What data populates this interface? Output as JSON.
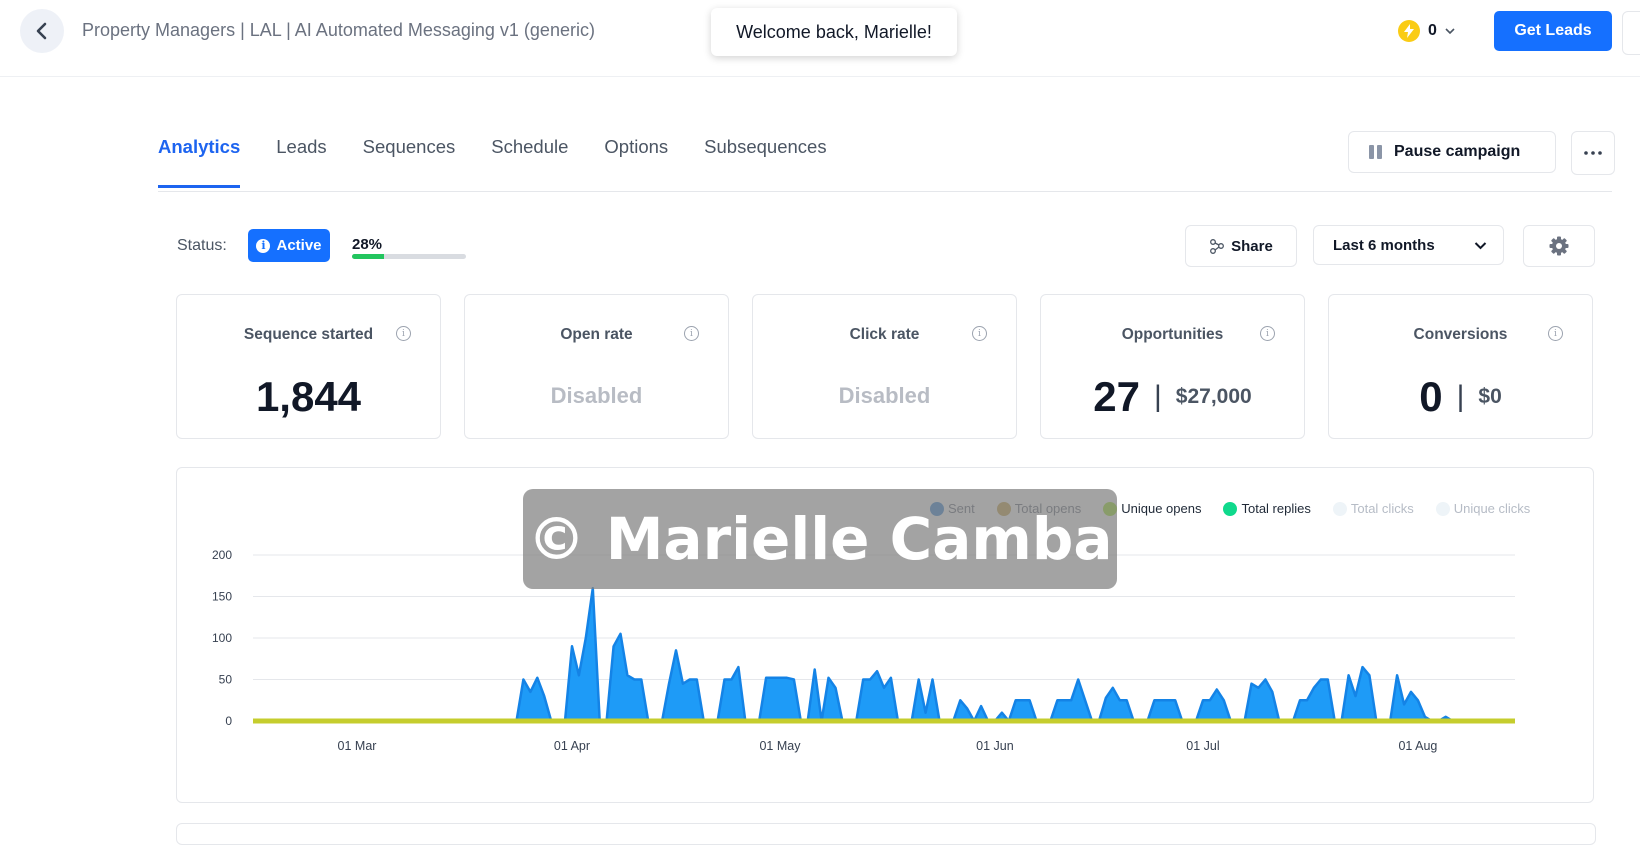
{
  "header": {
    "campaign_title": "Property Managers | LAL | AI Automated Messaging v1 (generic)",
    "toast": "Welcome back, Marielle!",
    "credits": "0",
    "get_leads_label": "Get Leads"
  },
  "tabs": [
    "Analytics",
    "Leads",
    "Sequences",
    "Schedule",
    "Options",
    "Subsequences"
  ],
  "active_tab": "Analytics",
  "actions": {
    "pause_label": "Pause campaign",
    "share_label": "Share",
    "range_label": "Last 6 months"
  },
  "status": {
    "label": "Status:",
    "badge": "Active",
    "progress_label": "28%",
    "progress": 0.28
  },
  "cards": [
    {
      "title": "Sequence started",
      "value": "1,844"
    },
    {
      "title": "Open rate",
      "value": "Disabled"
    },
    {
      "title": "Click rate",
      "value": "Disabled"
    },
    {
      "title": "Opportunities",
      "value": "27",
      "secondary": "$27,000"
    },
    {
      "title": "Conversions",
      "value": "0",
      "secondary": "$0"
    }
  ],
  "chart_data": {
    "type": "area",
    "x_ticks": [
      "01 Mar",
      "01 Apr",
      "01 May",
      "01 Jun",
      "01 Jul",
      "01 Aug"
    ],
    "y_ticks": [
      "0",
      "50",
      "100",
      "150",
      "200"
    ],
    "ylim": [
      0,
      200
    ],
    "x_range": [
      "2024-02-15",
      "2024-08-15"
    ],
    "legend": [
      {
        "name": "Sent",
        "color": "#3f8ad6"
      },
      {
        "name": "Total opens",
        "color": "#c8a64f"
      },
      {
        "name": "Unique opens",
        "color": "#a3e635"
      },
      {
        "name": "Total replies",
        "color": "#10d98c"
      },
      {
        "name": "Total clicks",
        "color": "#eef4f8"
      },
      {
        "name": "Unique clicks",
        "color": "#eef4f8"
      }
    ],
    "series": [
      {
        "name": "Sent",
        "color": "#1e9bf7",
        "points": [
          [
            "2024-03-24",
            0
          ],
          [
            "2024-03-25",
            50
          ],
          [
            "2024-03-26",
            35
          ],
          [
            "2024-03-27",
            52
          ],
          [
            "2024-03-28",
            30
          ],
          [
            "2024-03-29",
            0
          ],
          [
            "2024-03-31",
            0
          ],
          [
            "2024-04-01",
            90
          ],
          [
            "2024-04-02",
            55
          ],
          [
            "2024-04-03",
            100
          ],
          [
            "2024-04-04",
            160
          ],
          [
            "2024-04-05",
            0
          ],
          [
            "2024-04-06",
            0
          ],
          [
            "2024-04-07",
            90
          ],
          [
            "2024-04-08",
            105
          ],
          [
            "2024-04-09",
            55
          ],
          [
            "2024-04-10",
            50
          ],
          [
            "2024-04-11",
            50
          ],
          [
            "2024-04-12",
            0
          ],
          [
            "2024-04-14",
            0
          ],
          [
            "2024-04-15",
            45
          ],
          [
            "2024-04-16",
            85
          ],
          [
            "2024-04-17",
            45
          ],
          [
            "2024-04-18",
            50
          ],
          [
            "2024-04-19",
            50
          ],
          [
            "2024-04-20",
            0
          ],
          [
            "2024-04-22",
            0
          ],
          [
            "2024-04-23",
            50
          ],
          [
            "2024-04-24",
            50
          ],
          [
            "2024-04-25",
            65
          ],
          [
            "2024-04-26",
            0
          ],
          [
            "2024-04-28",
            0
          ],
          [
            "2024-04-29",
            52
          ],
          [
            "2024-04-30",
            52
          ],
          [
            "2024-05-02",
            52
          ],
          [
            "2024-05-03",
            50
          ],
          [
            "2024-05-04",
            0
          ],
          [
            "2024-05-05",
            0
          ],
          [
            "2024-05-06",
            62
          ],
          [
            "2024-05-07",
            0
          ],
          [
            "2024-05-08",
            52
          ],
          [
            "2024-05-09",
            40
          ],
          [
            "2024-05-10",
            0
          ],
          [
            "2024-05-12",
            0
          ],
          [
            "2024-05-13",
            50
          ],
          [
            "2024-05-14",
            50
          ],
          [
            "2024-05-15",
            60
          ],
          [
            "2024-05-16",
            40
          ],
          [
            "2024-05-17",
            52
          ],
          [
            "2024-05-18",
            0
          ],
          [
            "2024-05-20",
            0
          ],
          [
            "2024-05-21",
            50
          ],
          [
            "2024-05-22",
            10
          ],
          [
            "2024-05-23",
            50
          ],
          [
            "2024-05-24",
            0
          ],
          [
            "2024-05-26",
            0
          ],
          [
            "2024-05-27",
            25
          ],
          [
            "2024-05-28",
            15
          ],
          [
            "2024-05-29",
            0
          ],
          [
            "2024-05-30",
            18
          ],
          [
            "2024-05-31",
            0
          ],
          [
            "2024-06-01",
            0
          ],
          [
            "2024-06-02",
            10
          ],
          [
            "2024-06-03",
            0
          ],
          [
            "2024-06-04",
            25
          ],
          [
            "2024-06-05",
            25
          ],
          [
            "2024-06-06",
            25
          ],
          [
            "2024-06-07",
            0
          ],
          [
            "2024-06-09",
            0
          ],
          [
            "2024-06-10",
            25
          ],
          [
            "2024-06-11",
            25
          ],
          [
            "2024-06-12",
            25
          ],
          [
            "2024-06-13",
            50
          ],
          [
            "2024-06-14",
            25
          ],
          [
            "2024-06-15",
            0
          ],
          [
            "2024-06-16",
            0
          ],
          [
            "2024-06-17",
            28
          ],
          [
            "2024-06-18",
            40
          ],
          [
            "2024-06-19",
            25
          ],
          [
            "2024-06-20",
            25
          ],
          [
            "2024-06-21",
            0
          ],
          [
            "2024-06-23",
            0
          ],
          [
            "2024-06-24",
            25
          ],
          [
            "2024-06-25",
            25
          ],
          [
            "2024-06-26",
            25
          ],
          [
            "2024-06-27",
            25
          ],
          [
            "2024-06-28",
            0
          ],
          [
            "2024-06-30",
            0
          ],
          [
            "2024-07-01",
            25
          ],
          [
            "2024-07-02",
            25
          ],
          [
            "2024-07-03",
            38
          ],
          [
            "2024-07-04",
            25
          ],
          [
            "2024-07-05",
            0
          ],
          [
            "2024-07-07",
            0
          ],
          [
            "2024-07-08",
            45
          ],
          [
            "2024-07-09",
            40
          ],
          [
            "2024-07-10",
            50
          ],
          [
            "2024-07-11",
            35
          ],
          [
            "2024-07-12",
            0
          ],
          [
            "2024-07-14",
            0
          ],
          [
            "2024-07-15",
            25
          ],
          [
            "2024-07-16",
            25
          ],
          [
            "2024-07-17",
            40
          ],
          [
            "2024-07-18",
            50
          ],
          [
            "2024-07-19",
            50
          ],
          [
            "2024-07-20",
            0
          ],
          [
            "2024-07-21",
            0
          ],
          [
            "2024-07-22",
            55
          ],
          [
            "2024-07-23",
            30
          ],
          [
            "2024-07-24",
            65
          ],
          [
            "2024-07-25",
            55
          ],
          [
            "2024-07-26",
            0
          ],
          [
            "2024-07-28",
            0
          ],
          [
            "2024-07-29",
            55
          ],
          [
            "2024-07-30",
            20
          ],
          [
            "2024-07-31",
            35
          ],
          [
            "2024-08-01",
            25
          ],
          [
            "2024-08-02",
            5
          ],
          [
            "2024-08-03",
            0
          ],
          [
            "2024-08-04",
            0
          ],
          [
            "2024-08-05",
            5
          ],
          [
            "2024-08-06",
            0
          ]
        ]
      },
      {
        "name": "Total replies",
        "color": "#c5cd2d",
        "points": [
          [
            "2024-02-15",
            0
          ],
          [
            "2024-08-15",
            0
          ]
        ]
      }
    ]
  },
  "watermark": "© Marielle Camba"
}
